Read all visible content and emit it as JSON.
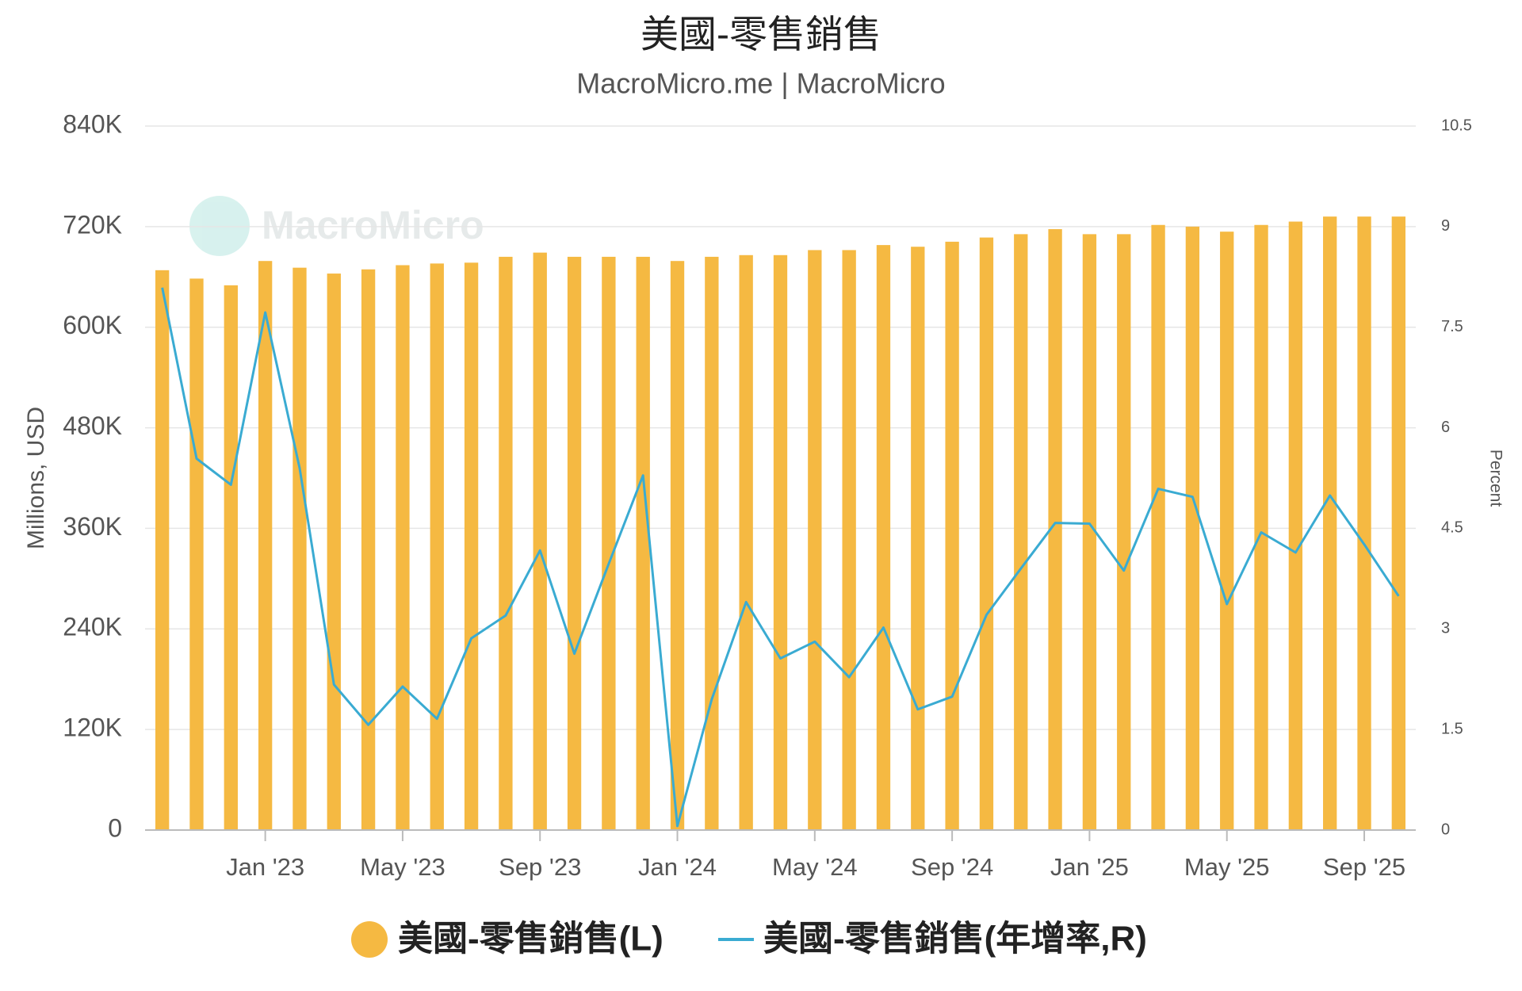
{
  "chart_data": {
    "type": "bar",
    "title": "美國-零售銷售",
    "subtitle": "MacroMicro.me | MacroMicro",
    "watermark": "MacroMicro",
    "y_label": "Millions, USD",
    "y2_label": "Percent",
    "categories": [
      null,
      null,
      null,
      "Jan '23",
      null,
      null,
      null,
      "May '23",
      null,
      null,
      null,
      "Sep '23",
      null,
      null,
      null,
      "Jan '24",
      null,
      null,
      null,
      "May '24",
      null,
      null,
      null,
      "Sep '24",
      null,
      null,
      null,
      "Jan '25",
      null,
      null,
      null,
      "May '25",
      null,
      null,
      null,
      "Sep '25",
      null
    ],
    "series": [
      {
        "name": "美國-零售銷售(L)",
        "type": "bar",
        "color": "#f5b942",
        "values": [
          668000,
          658000,
          650000,
          679000,
          671000,
          664000,
          669000,
          674000,
          676000,
          677000,
          684000,
          689000,
          684000,
          684000,
          684000,
          679000,
          684000,
          686000,
          686000,
          692000,
          692000,
          698000,
          696000,
          702000,
          707000,
          711000,
          717000,
          711000,
          711000,
          722000,
          720000,
          714000,
          722000,
          726000,
          732000,
          732000,
          732000
        ]
      },
      {
        "name": "美國-零售銷售(年增率,R)",
        "type": "line",
        "axis": "y2",
        "color": "#3aabd2",
        "values": [
          8.09,
          5.54,
          5.15,
          7.72,
          5.4,
          2.17,
          1.57,
          2.14,
          1.66,
          2.86,
          3.2,
          4.17,
          2.63,
          3.97,
          5.29,
          0.06,
          1.95,
          3.4,
          2.56,
          2.81,
          2.28,
          3.02,
          1.8,
          1.99,
          3.21,
          3.9,
          4.58,
          4.57,
          3.87,
          5.09,
          4.97,
          3.37,
          4.44,
          4.14,
          4.99,
          4.26,
          3.49
        ]
      }
    ],
    "ylim": [
      0,
      840000
    ],
    "yticks": [
      0,
      {
        "value": 120000,
        "label": "120K"
      },
      {
        "value": 240000,
        "label": "240K"
      },
      {
        "value": 360000,
        "label": "360K"
      },
      {
        "value": 480000,
        "label": "480K"
      },
      {
        "value": 600000,
        "label": "600K"
      },
      {
        "value": 720000,
        "label": "720K"
      },
      {
        "value": 840000,
        "label": "840K"
      }
    ],
    "y2lim": [
      0,
      10.5
    ],
    "y2ticks": [
      0,
      1.5,
      3,
      4.5,
      6,
      7.5,
      9,
      10.5
    ],
    "grid": true
  }
}
